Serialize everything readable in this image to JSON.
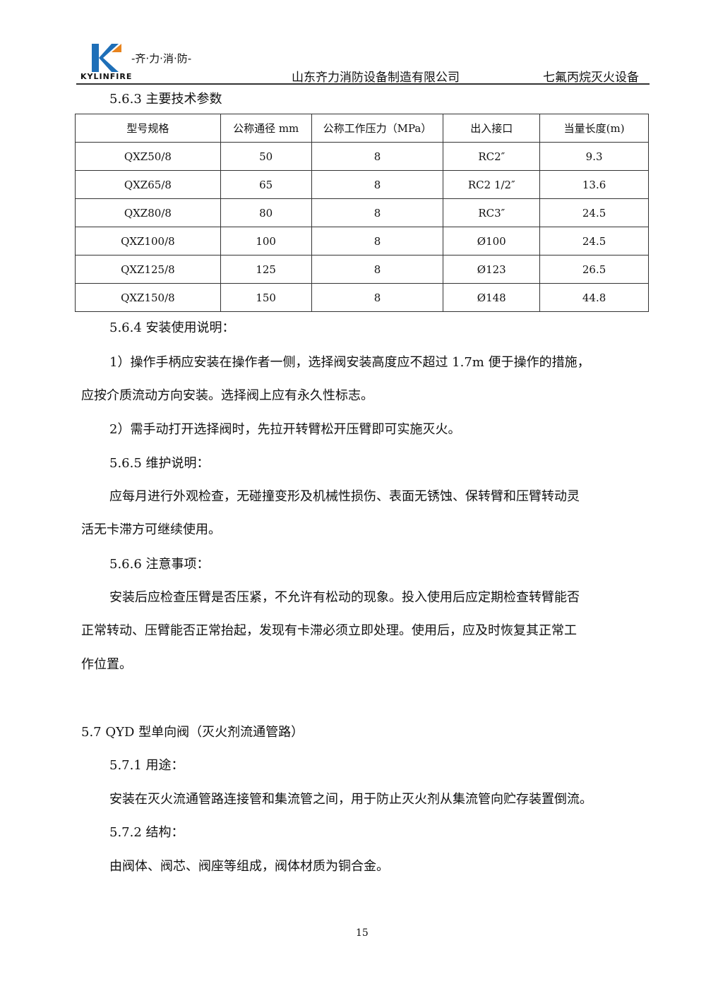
{
  "header": {
    "logo_text": "KYLINFIRE",
    "slogan": "-齐·力·消·防-",
    "company": "山东齐力消防设备制造有限公司",
    "product": "七氟丙烷灭火设备",
    "colors": {
      "logo_blue": "#1e6fb8",
      "logo_orange": "#e8841e"
    }
  },
  "section_563": {
    "heading": "5.6.3 主要技术参数"
  },
  "table": {
    "headers": [
      "型号规格",
      "公称通径 mm",
      "公称工作压力（MPa）",
      "出入接口",
      "当量长度(m)"
    ],
    "rows": [
      [
        "QXZ50/8",
        "50",
        "8",
        "RC2″",
        "9.3"
      ],
      [
        "QXZ65/8",
        "65",
        "8",
        "RC2 1/2″",
        "13.6"
      ],
      [
        "QXZ80/8",
        "80",
        "8",
        "RC3″",
        "24.5"
      ],
      [
        "QXZ100/8",
        "100",
        "8",
        "Ø100",
        "24.5"
      ],
      [
        "QXZ125/8",
        "125",
        "8",
        "Ø123",
        "26.5"
      ],
      [
        "QXZ150/8",
        "150",
        "8",
        "Ø148",
        "44.8"
      ]
    ]
  },
  "lines": [
    "5.6.4 安装使用说明：",
    "1）操作手柄应安装在操作者一侧，选择阀安装高度应不超过 1.7m 便于操作的措施，",
    "应按介质流动方向安装。选择阀上应有永久性标志。",
    "2）需手动打开选择阀时，先拉开转臂松开压臂即可实施灭火。",
    "5.6.5 维护说明：",
    "应每月进行外观检查，无碰撞变形及机械性损伤、表面无锈蚀、保转臂和压臂转动灵",
    "活无卡滞方可继续使用。",
    "5.6.6 注意事项：",
    "安装后应检查压臂是否压紧，不允许有松动的现象。投入使用后应定期检查转臂能否",
    "正常转动、压臂能否正常抬起，发现有卡滞必须立即处理。使用后，应及时恢复其正常工",
    "作位置。",
    "5.7 QYD 型单向阀（灭火剂流通管路）",
    "5.7.1 用途：",
    "安装在灭火流通管路连接管和集流管之间，用于防止灭火剂从集流管向贮存装置倒流。",
    "5.7.2 结构：",
    "由阀体、阀芯、阀座等组成，阀体材质为铜合金。"
  ],
  "page_number": "15"
}
